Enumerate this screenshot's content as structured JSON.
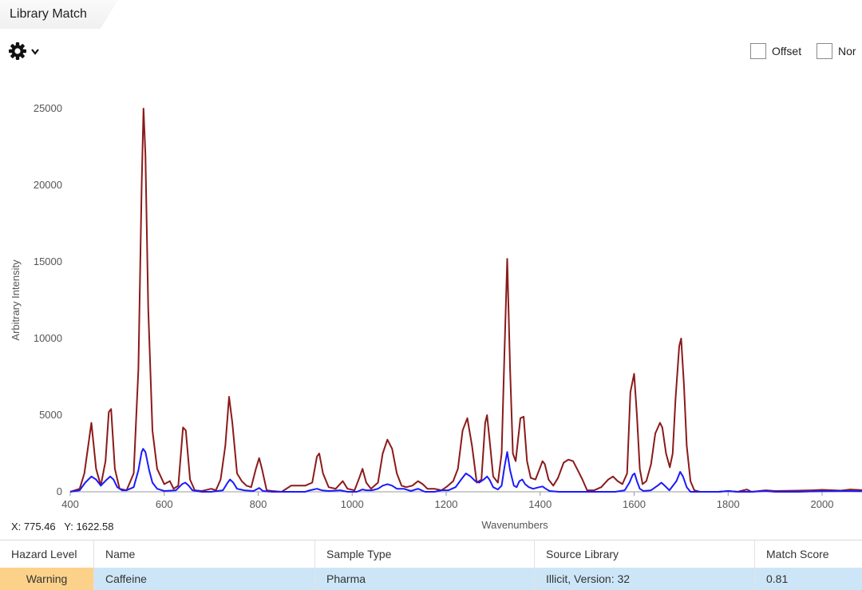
{
  "tab": {
    "title": "Library Match"
  },
  "toolbar": {
    "settings_icon": "gear-icon",
    "dropdown_icon": "chevron-down-icon"
  },
  "options": [
    {
      "label": "Offset",
      "checked": false
    },
    {
      "label": "Nor",
      "checked": false
    }
  ],
  "cursor_readout": {
    "x_label": "X: 775.46",
    "y_label": "Y: 1622.58"
  },
  "chart_data": {
    "type": "line",
    "title": "",
    "xlabel": "Wavenumbers",
    "ylabel": "Arbitrary Intensity",
    "xlim": [
      400,
      2100
    ],
    "ylim": [
      0,
      25000
    ],
    "xticks": [
      "400",
      "600",
      "800",
      "1000",
      "1200",
      "1400",
      "1600",
      "1800",
      "2000"
    ],
    "yticks": [
      "0",
      "5000",
      "10000",
      "15000",
      "20000",
      "25000"
    ],
    "grid": false,
    "colors": {
      "sample": "#8b1a1a",
      "library": "#1a1aff"
    },
    "series": [
      {
        "color": "#8b1a1a",
        "points": [
          [
            400,
            0
          ],
          [
            420,
            200
          ],
          [
            430,
            1200
          ],
          [
            445,
            4500
          ],
          [
            455,
            1500
          ],
          [
            465,
            400
          ],
          [
            475,
            2000
          ],
          [
            482,
            5200
          ],
          [
            487,
            5400
          ],
          [
            495,
            1500
          ],
          [
            505,
            200
          ],
          [
            520,
            100
          ],
          [
            535,
            1200
          ],
          [
            545,
            8000
          ],
          [
            552,
            20000
          ],
          [
            556,
            25000
          ],
          [
            560,
            22000
          ],
          [
            566,
            12000
          ],
          [
            575,
            4000
          ],
          [
            585,
            1500
          ],
          [
            600,
            500
          ],
          [
            612,
            700
          ],
          [
            620,
            200
          ],
          [
            630,
            400
          ],
          [
            640,
            4200
          ],
          [
            646,
            4000
          ],
          [
            655,
            800
          ],
          [
            665,
            100
          ],
          [
            680,
            50
          ],
          [
            700,
            200
          ],
          [
            710,
            100
          ],
          [
            720,
            800
          ],
          [
            730,
            3000
          ],
          [
            738,
            6200
          ],
          [
            745,
            4500
          ],
          [
            755,
            1200
          ],
          [
            765,
            700
          ],
          [
            775,
            400
          ],
          [
            785,
            300
          ],
          [
            795,
            1500
          ],
          [
            802,
            2200
          ],
          [
            808,
            1500
          ],
          [
            818,
            100
          ],
          [
            830,
            50
          ],
          [
            850,
            0
          ],
          [
            870,
            400
          ],
          [
            900,
            400
          ],
          [
            915,
            600
          ],
          [
            925,
            2300
          ],
          [
            930,
            2500
          ],
          [
            938,
            1200
          ],
          [
            950,
            300
          ],
          [
            965,
            200
          ],
          [
            980,
            700
          ],
          [
            990,
            200
          ],
          [
            1005,
            100
          ],
          [
            1015,
            900
          ],
          [
            1022,
            1500
          ],
          [
            1030,
            600
          ],
          [
            1040,
            200
          ],
          [
            1055,
            600
          ],
          [
            1065,
            2500
          ],
          [
            1075,
            3400
          ],
          [
            1085,
            2800
          ],
          [
            1095,
            1200
          ],
          [
            1105,
            400
          ],
          [
            1115,
            300
          ],
          [
            1128,
            400
          ],
          [
            1140,
            700
          ],
          [
            1150,
            500
          ],
          [
            1160,
            200
          ],
          [
            1175,
            200
          ],
          [
            1190,
            100
          ],
          [
            1200,
            300
          ],
          [
            1215,
            700
          ],
          [
            1225,
            1500
          ],
          [
            1235,
            4000
          ],
          [
            1245,
            4800
          ],
          [
            1255,
            3000
          ],
          [
            1265,
            600
          ],
          [
            1275,
            800
          ],
          [
            1283,
            4500
          ],
          [
            1287,
            5000
          ],
          [
            1292,
            3500
          ],
          [
            1300,
            1000
          ],
          [
            1310,
            600
          ],
          [
            1318,
            2500
          ],
          [
            1324,
            9000
          ],
          [
            1330,
            15200
          ],
          [
            1336,
            8000
          ],
          [
            1342,
            2500
          ],
          [
            1348,
            2000
          ],
          [
            1358,
            4800
          ],
          [
            1365,
            4900
          ],
          [
            1372,
            2000
          ],
          [
            1380,
            900
          ],
          [
            1390,
            800
          ],
          [
            1400,
            1600
          ],
          [
            1405,
            2000
          ],
          [
            1410,
            1800
          ],
          [
            1418,
            800
          ],
          [
            1428,
            400
          ],
          [
            1438,
            900
          ],
          [
            1450,
            1900
          ],
          [
            1460,
            2100
          ],
          [
            1470,
            2000
          ],
          [
            1480,
            1400
          ],
          [
            1490,
            800
          ],
          [
            1500,
            100
          ],
          [
            1515,
            100
          ],
          [
            1530,
            300
          ],
          [
            1545,
            800
          ],
          [
            1555,
            1000
          ],
          [
            1565,
            700
          ],
          [
            1575,
            500
          ],
          [
            1585,
            1200
          ],
          [
            1592,
            6500
          ],
          [
            1600,
            7700
          ],
          [
            1606,
            5000
          ],
          [
            1612,
            1500
          ],
          [
            1618,
            500
          ],
          [
            1626,
            700
          ],
          [
            1636,
            1800
          ],
          [
            1645,
            3800
          ],
          [
            1655,
            4500
          ],
          [
            1660,
            4200
          ],
          [
            1668,
            2500
          ],
          [
            1676,
            1600
          ],
          [
            1682,
            2500
          ],
          [
            1688,
            6000
          ],
          [
            1696,
            9500
          ],
          [
            1700,
            10000
          ],
          [
            1706,
            7000
          ],
          [
            1712,
            3000
          ],
          [
            1720,
            700
          ],
          [
            1728,
            100
          ],
          [
            1740,
            0
          ],
          [
            1780,
            0
          ],
          [
            1800,
            50
          ],
          [
            1820,
            0
          ],
          [
            1840,
            150
          ],
          [
            1850,
            0
          ],
          [
            1880,
            100
          ],
          [
            1900,
            50
          ],
          [
            1950,
            80
          ],
          [
            1980,
            100
          ],
          [
            2000,
            130
          ],
          [
            2040,
            80
          ],
          [
            2060,
            150
          ],
          [
            2080,
            120
          ],
          [
            2100,
            60
          ]
        ]
      },
      {
        "color": "#1a1aff",
        "points": [
          [
            400,
            0
          ],
          [
            420,
            100
          ],
          [
            432,
            600
          ],
          [
            445,
            1000
          ],
          [
            455,
            800
          ],
          [
            465,
            400
          ],
          [
            478,
            800
          ],
          [
            485,
            1000
          ],
          [
            492,
            800
          ],
          [
            500,
            300
          ],
          [
            510,
            100
          ],
          [
            520,
            100
          ],
          [
            535,
            300
          ],
          [
            545,
            1400
          ],
          [
            552,
            2600
          ],
          [
            555,
            2800
          ],
          [
            560,
            2600
          ],
          [
            568,
            1400
          ],
          [
            575,
            600
          ],
          [
            585,
            200
          ],
          [
            600,
            50
          ],
          [
            625,
            100
          ],
          [
            638,
            500
          ],
          [
            645,
            600
          ],
          [
            652,
            400
          ],
          [
            660,
            100
          ],
          [
            680,
            0
          ],
          [
            700,
            0
          ],
          [
            725,
            100
          ],
          [
            735,
            600
          ],
          [
            740,
            800
          ],
          [
            747,
            600
          ],
          [
            755,
            200
          ],
          [
            770,
            100
          ],
          [
            790,
            50
          ],
          [
            802,
            250
          ],
          [
            810,
            50
          ],
          [
            830,
            0
          ],
          [
            900,
            0
          ],
          [
            910,
            100
          ],
          [
            925,
            200
          ],
          [
            935,
            100
          ],
          [
            950,
            50
          ],
          [
            975,
            100
          ],
          [
            990,
            0
          ],
          [
            1010,
            0
          ],
          [
            1022,
            150
          ],
          [
            1030,
            100
          ],
          [
            1042,
            100
          ],
          [
            1055,
            200
          ],
          [
            1065,
            400
          ],
          [
            1075,
            500
          ],
          [
            1085,
            400
          ],
          [
            1095,
            200
          ],
          [
            1110,
            200
          ],
          [
            1125,
            50
          ],
          [
            1140,
            200
          ],
          [
            1155,
            0
          ],
          [
            1175,
            0
          ],
          [
            1190,
            100
          ],
          [
            1205,
            100
          ],
          [
            1220,
            300
          ],
          [
            1232,
            800
          ],
          [
            1242,
            1200
          ],
          [
            1252,
            1000
          ],
          [
            1262,
            700
          ],
          [
            1270,
            600
          ],
          [
            1280,
            800
          ],
          [
            1287,
            1000
          ],
          [
            1292,
            800
          ],
          [
            1300,
            300
          ],
          [
            1310,
            150
          ],
          [
            1318,
            400
          ],
          [
            1324,
            1600
          ],
          [
            1330,
            2600
          ],
          [
            1336,
            1400
          ],
          [
            1344,
            400
          ],
          [
            1350,
            300
          ],
          [
            1356,
            700
          ],
          [
            1362,
            800
          ],
          [
            1368,
            500
          ],
          [
            1376,
            300
          ],
          [
            1385,
            200
          ],
          [
            1398,
            300
          ],
          [
            1405,
            350
          ],
          [
            1412,
            200
          ],
          [
            1420,
            50
          ],
          [
            1440,
            0
          ],
          [
            1460,
            0
          ],
          [
            1560,
            0
          ],
          [
            1580,
            100
          ],
          [
            1590,
            600
          ],
          [
            1597,
            1100
          ],
          [
            1601,
            1200
          ],
          [
            1606,
            700
          ],
          [
            1612,
            200
          ],
          [
            1620,
            50
          ],
          [
            1636,
            100
          ],
          [
            1650,
            400
          ],
          [
            1658,
            600
          ],
          [
            1665,
            400
          ],
          [
            1675,
            100
          ],
          [
            1690,
            700
          ],
          [
            1698,
            1300
          ],
          [
            1704,
            1000
          ],
          [
            1712,
            300
          ],
          [
            1720,
            0
          ],
          [
            1780,
            0
          ],
          [
            1800,
            50
          ],
          [
            1820,
            0
          ],
          [
            1850,
            0
          ],
          [
            1880,
            50
          ],
          [
            1900,
            0
          ],
          [
            1950,
            0
          ],
          [
            2000,
            40
          ],
          [
            2050,
            50
          ],
          [
            2100,
            30
          ]
        ]
      }
    ]
  },
  "results_table": {
    "columns": [
      "Hazard Level",
      "Name",
      "Sample Type",
      "Source Library",
      "Match Score"
    ],
    "rows": [
      {
        "hazard": "Warning",
        "name": "Caffeine",
        "sample_type": "Pharma",
        "source": "Illicit, Version: 32",
        "score": "0.81",
        "hazard_color": "#fcd28a"
      }
    ],
    "selected_row_color": "#cde6f7"
  }
}
